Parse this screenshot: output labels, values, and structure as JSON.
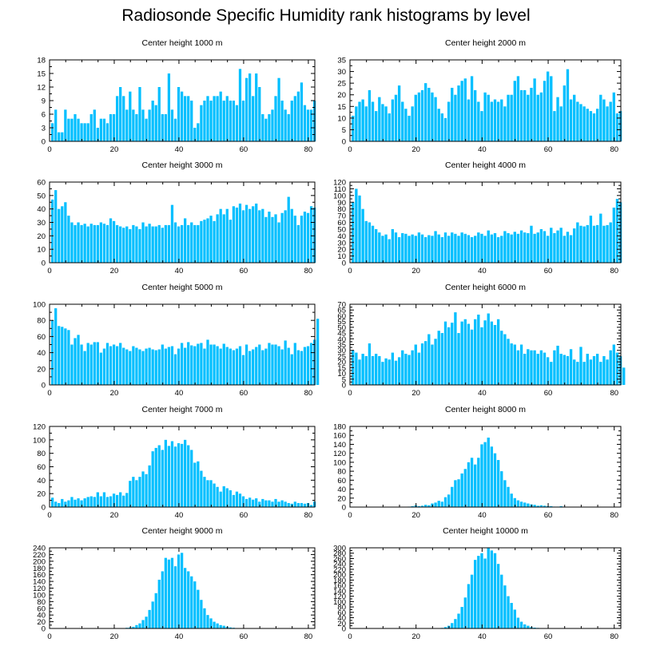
{
  "title": "Radiosonde Specific Humidity rank histograms by level",
  "chart_data": [
    {
      "type": "bar",
      "title": "Center height 1000 m",
      "xlim": [
        0,
        82
      ],
      "xticks": [
        0,
        20,
        40,
        60,
        80
      ],
      "ylim": [
        0,
        18
      ],
      "yticks": [
        0,
        3,
        6,
        9,
        12,
        15,
        18
      ],
      "bar_color": "#00bfff",
      "values": [
        4,
        7,
        2,
        2,
        7,
        5,
        5,
        6,
        5,
        4,
        4,
        4,
        6,
        7,
        3,
        5,
        5,
        4,
        6,
        6,
        10,
        12,
        10,
        7,
        11,
        7,
        6,
        12,
        7,
        5,
        7,
        9,
        8,
        12,
        6,
        6,
        15,
        7,
        5,
        12,
        11,
        10,
        10,
        9,
        3,
        4,
        8,
        9,
        10,
        9,
        10,
        10,
        11,
        9,
        10,
        9,
        9,
        8,
        16,
        9,
        14,
        15,
        10,
        15,
        12,
        6,
        5,
        6,
        7,
        10,
        14,
        9,
        7,
        6,
        9,
        10,
        11,
        13,
        8,
        7,
        7,
        9
      ]
    },
    {
      "type": "bar",
      "title": "Center height 2000 m",
      "xlim": [
        0,
        82
      ],
      "xticks": [
        0,
        20,
        40,
        60,
        80
      ],
      "ylim": [
        0,
        35
      ],
      "yticks": [
        0,
        5,
        10,
        15,
        20,
        25,
        30,
        35
      ],
      "bar_color": "#00bfff",
      "values": [
        11,
        15,
        17,
        18,
        15,
        22,
        17,
        13,
        19,
        16,
        15,
        12,
        18,
        20,
        24,
        17,
        14,
        11,
        15,
        20,
        21,
        22,
        25,
        23,
        21,
        19,
        14,
        12,
        10,
        17,
        23,
        20,
        24,
        26,
        27,
        18,
        28,
        22,
        17,
        13,
        21,
        20,
        17,
        18,
        17,
        18,
        15,
        20,
        20,
        26,
        28,
        22,
        22,
        20,
        23,
        27,
        20,
        21,
        26,
        30,
        28,
        13,
        19,
        15,
        24,
        31,
        18,
        20,
        17,
        16,
        15,
        14,
        13,
        12,
        14,
        20,
        18,
        15,
        17,
        21,
        12,
        13
      ]
    },
    {
      "type": "bar",
      "title": "Center height 3000 m",
      "xlim": [
        0,
        82
      ],
      "xticks": [
        0,
        20,
        40,
        60,
        80
      ],
      "ylim": [
        0,
        60
      ],
      "yticks": [
        0,
        10,
        20,
        30,
        40,
        50,
        60
      ],
      "bar_color": "#00bfff",
      "values": [
        47,
        54,
        40,
        42,
        45,
        35,
        30,
        28,
        30,
        28,
        29,
        27,
        29,
        28,
        28,
        30,
        29,
        28,
        33,
        31,
        28,
        27,
        26,
        27,
        25,
        28,
        27,
        25,
        30,
        27,
        29,
        27,
        27,
        28,
        26,
        28,
        28,
        43,
        30,
        27,
        28,
        33,
        28,
        30,
        28,
        28,
        31,
        32,
        33,
        35,
        31,
        36,
        40,
        36,
        40,
        32,
        42,
        41,
        44,
        39,
        43,
        40,
        42,
        44,
        39,
        40,
        34,
        38,
        34,
        36,
        30,
        37,
        39,
        49,
        40,
        35,
        28,
        35,
        38,
        37,
        42,
        41
      ]
    },
    {
      "type": "bar",
      "title": "Center height 4000 m",
      "xlim": [
        0,
        82
      ],
      "xticks": [
        0,
        20,
        40,
        60,
        80
      ],
      "ylim": [
        0,
        120
      ],
      "yticks": [
        0,
        10,
        20,
        30,
        40,
        50,
        60,
        70,
        80,
        90,
        100,
        110,
        120
      ],
      "bar_color": "#00bfff",
      "values": [
        90,
        110,
        100,
        80,
        62,
        60,
        55,
        50,
        45,
        40,
        42,
        35,
        50,
        45,
        38,
        44,
        43,
        40,
        42,
        40,
        45,
        42,
        38,
        41,
        40,
        47,
        42,
        38,
        45,
        40,
        45,
        43,
        40,
        45,
        43,
        41,
        38,
        40,
        45,
        43,
        40,
        48,
        42,
        44,
        38,
        40,
        47,
        44,
        42,
        46,
        43,
        48,
        45,
        44,
        55,
        43,
        45,
        50,
        47,
        40,
        52,
        44,
        48,
        52,
        40,
        46,
        41,
        51,
        60,
        55,
        54,
        56,
        70,
        55,
        56,
        73,
        55,
        56,
        60,
        82,
        95,
        90
      ]
    },
    {
      "type": "bar",
      "title": "Center height 5000 m",
      "xlim": [
        0,
        82
      ],
      "xticks": [
        0,
        20,
        40,
        60,
        80
      ],
      "ylim": [
        0,
        100
      ],
      "yticks": [
        0,
        20,
        40,
        60,
        80,
        100
      ],
      "bar_color": "#00bfff",
      "values": [
        80,
        95,
        73,
        72,
        70,
        68,
        50,
        58,
        62,
        50,
        42,
        52,
        50,
        53,
        53,
        40,
        45,
        52,
        48,
        50,
        48,
        52,
        46,
        44,
        42,
        48,
        46,
        44,
        42,
        45,
        46,
        44,
        43,
        44,
        50,
        45,
        47,
        48,
        38,
        45,
        52,
        46,
        53,
        49,
        48,
        51,
        52,
        45,
        56,
        50,
        50,
        48,
        45,
        51,
        47,
        45,
        43,
        45,
        48,
        37,
        50,
        42,
        44,
        47,
        50,
        43,
        45,
        52,
        50,
        50,
        48,
        44,
        55,
        46,
        38,
        52,
        43,
        42,
        47,
        48,
        52,
        56,
        82
      ]
    },
    {
      "type": "bar",
      "title": "Center height 6000 m",
      "xlim": [
        0,
        82
      ],
      "xticks": [
        0,
        20,
        40,
        60,
        80
      ],
      "ylim": [
        0,
        70
      ],
      "yticks": [
        0,
        5,
        10,
        15,
        20,
        25,
        30,
        35,
        40,
        45,
        50,
        55,
        60,
        65,
        70
      ],
      "bar_color": "#00bfff",
      "values": [
        30,
        28,
        22,
        27,
        25,
        36,
        25,
        27,
        25,
        20,
        23,
        22,
        28,
        21,
        24,
        30,
        27,
        26,
        30,
        35,
        28,
        36,
        38,
        44,
        35,
        40,
        47,
        45,
        55,
        50,
        54,
        63,
        45,
        55,
        57,
        53,
        48,
        57,
        61,
        50,
        56,
        62,
        55,
        52,
        57,
        47,
        44,
        40,
        36,
        35,
        30,
        35,
        27,
        31,
        30,
        30,
        27,
        30,
        28,
        24,
        20,
        30,
        34,
        27,
        26,
        25,
        31,
        22,
        20,
        33,
        20,
        27,
        22,
        25,
        27,
        20,
        25,
        22,
        30,
        35,
        28,
        25,
        15
      ]
    },
    {
      "type": "bar",
      "title": "Center height 7000 m",
      "xlim": [
        0,
        82
      ],
      "xticks": [
        0,
        20,
        40,
        60,
        80
      ],
      "ylim": [
        0,
        120
      ],
      "yticks": [
        0,
        20,
        40,
        60,
        80,
        100,
        120
      ],
      "bar_color": "#00bfff",
      "values": [
        14,
        8,
        6,
        12,
        8,
        10,
        15,
        11,
        13,
        10,
        13,
        15,
        16,
        15,
        22,
        16,
        22,
        15,
        16,
        20,
        18,
        22,
        17,
        21,
        39,
        45,
        40,
        45,
        53,
        49,
        62,
        83,
        88,
        92,
        85,
        100,
        91,
        98,
        90,
        95,
        94,
        100,
        92,
        85,
        66,
        68,
        54,
        45,
        40,
        40,
        35,
        30,
        23,
        31,
        28,
        25,
        18,
        23,
        20,
        16,
        12,
        14,
        11,
        13,
        8,
        12,
        10,
        10,
        8,
        12,
        8,
        10,
        8,
        6,
        5,
        8,
        6,
        6,
        5,
        6,
        3,
        8
      ]
    },
    {
      "type": "bar",
      "title": "Center height 8000 m",
      "xlim": [
        0,
        82
      ],
      "xticks": [
        0,
        20,
        40,
        60,
        80
      ],
      "ylim": [
        0,
        180
      ],
      "yticks": [
        0,
        20,
        40,
        60,
        80,
        100,
        120,
        140,
        160,
        180
      ],
      "bar_color": "#00bfff",
      "values": [
        0,
        0,
        0,
        0,
        0,
        0,
        0,
        0,
        0,
        0,
        0,
        0,
        0,
        0,
        0,
        0,
        0,
        1,
        2,
        4,
        2,
        3,
        5,
        4,
        8,
        10,
        14,
        12,
        22,
        28,
        45,
        60,
        62,
        75,
        85,
        100,
        110,
        95,
        110,
        140,
        145,
        155,
        135,
        120,
        105,
        80,
        60,
        45,
        30,
        20,
        15,
        12,
        10,
        8,
        6,
        5,
        3,
        4,
        3,
        2,
        2,
        1,
        1,
        2,
        1,
        0,
        0,
        0,
        0,
        0,
        0,
        0,
        0,
        0,
        0,
        0,
        0,
        0,
        0,
        0,
        0,
        0
      ]
    },
    {
      "type": "bar",
      "title": "Center height 9000 m",
      "xlim": [
        0,
        82
      ],
      "xticks": [
        0,
        20,
        40,
        60,
        80
      ],
      "ylim": [
        0,
        240
      ],
      "yticks": [
        0,
        20,
        40,
        60,
        80,
        100,
        120,
        140,
        160,
        180,
        200,
        220,
        240
      ],
      "bar_color": "#00bfff",
      "values": [
        0,
        0,
        0,
        0,
        0,
        0,
        0,
        0,
        0,
        0,
        0,
        0,
        0,
        0,
        0,
        0,
        0,
        0,
        0,
        0,
        0,
        0,
        1,
        2,
        3,
        5,
        10,
        15,
        25,
        35,
        55,
        80,
        105,
        145,
        170,
        210,
        205,
        210,
        185,
        220,
        225,
        180,
        170,
        155,
        140,
        115,
        85,
        60,
        40,
        30,
        20,
        15,
        10,
        8,
        5,
        3,
        2,
        1,
        1,
        0,
        0,
        0,
        0,
        0,
        0,
        0,
        0,
        0,
        0,
        0,
        0,
        0,
        0,
        0,
        0,
        0,
        0,
        0,
        0,
        0,
        0,
        0
      ]
    },
    {
      "type": "bar",
      "title": "Center height 10000 m",
      "xlim": [
        0,
        82
      ],
      "xticks": [
        0,
        20,
        40,
        60,
        80
      ],
      "ylim": [
        0,
        300
      ],
      "yticks": [
        0,
        20,
        40,
        60,
        80,
        100,
        120,
        140,
        160,
        180,
        200,
        220,
        240,
        260,
        280,
        300
      ],
      "bar_color": "#00bfff",
      "values": [
        0,
        0,
        0,
        0,
        0,
        0,
        0,
        0,
        0,
        0,
        0,
        0,
        0,
        0,
        0,
        0,
        0,
        0,
        0,
        0,
        0,
        0,
        0,
        0,
        0,
        0,
        1,
        2,
        5,
        10,
        20,
        35,
        55,
        80,
        115,
        165,
        200,
        255,
        270,
        280,
        260,
        300,
        290,
        280,
        240,
        200,
        160,
        120,
        95,
        70,
        40,
        25,
        15,
        10,
        5,
        3,
        2,
        1,
        1,
        0,
        0,
        0,
        0,
        0,
        0,
        0,
        0,
        0,
        0,
        0,
        0,
        0,
        0,
        0,
        0,
        0,
        0,
        0,
        0,
        0,
        0,
        0
      ]
    }
  ]
}
